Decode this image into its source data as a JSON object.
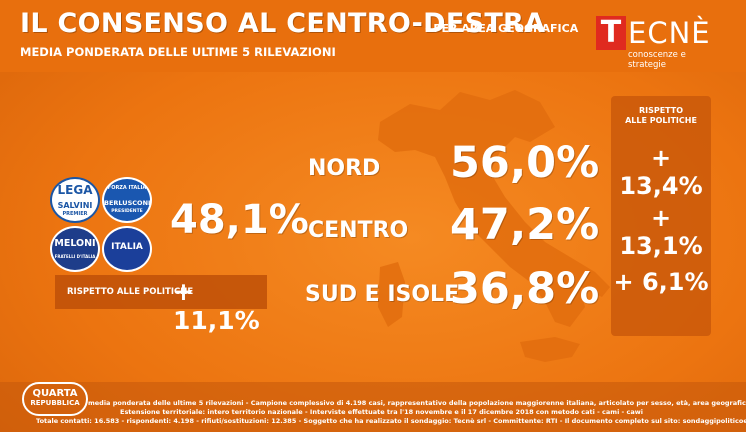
{
  "header": {
    "title": "IL CONSENSO AL CENTRO-DESTRA",
    "subtitle_area": "- PER AREA GEOGRAFICA",
    "subtitle": "MEDIA PONDERATA DELLE ULTIME 5 RILEVAZIONI",
    "logo_mark": "T",
    "logo_rest": "ECNÈ",
    "logo_tagline": "conoscenze e strategie"
  },
  "parties": {
    "lega_top": "LEGA",
    "lega_bottom": "SALVINI",
    "lega_sub": "PREMIER",
    "fi_top": "FORZA ITALIA",
    "fi_mid": "BERLUSCONI",
    "fi_sub": "PRESIDENTE",
    "fdi_top": "MELONI",
    "fdi_sub": "FRATELLI D'ITALIA",
    "nci": "ITALIA"
  },
  "total": {
    "value": "48,1%",
    "box_label": "RISPETTO ALLE POLITICHE",
    "box_value": "+ 11,1%"
  },
  "regions": [
    {
      "label": "NORD",
      "value": "56,0%",
      "delta": "+ 13,4%"
    },
    {
      "label": "CENTRO",
      "value": "47,2%",
      "delta": "+ 13,1%"
    },
    {
      "label": "SUD E ISOLE",
      "value": "36,8%",
      "delta": "+ 6,1%"
    }
  ],
  "right_header": {
    "line1": "RISPETTO",
    "line2": "ALLE POLITICHE"
  },
  "footer": {
    "logo_line1": "QUARTA",
    "logo_line2": "REPUBBLICA",
    "line1": "media ponderata delle ultime 5 rilevazioni - Campione complessivo di 4.198 casi, rappresentativo della popolazione maggiorenne italiana, articolato per sesso, età, area geografica",
    "line2": "Estensione territoriale: intero territorio nazionale - Interviste effettuate tra l'18 novembre e il 17 dicembre 2018 con metodo cati - cami - cawi",
    "line3": "Totale contatti: 16.583 - rispondenti: 4.198 - rifiuti/sostituzioni: 12.385 - Soggetto che ha realizzato il sondaggio: Tecnè srl - Committente: RTI - Il documento completo sul sito: sondaggipoliticoelettorali.it"
  },
  "colors": {
    "background": "#f07b14",
    "panel": "#c8580a",
    "logo_red": "#e02a1f",
    "text": "#ffffff"
  }
}
